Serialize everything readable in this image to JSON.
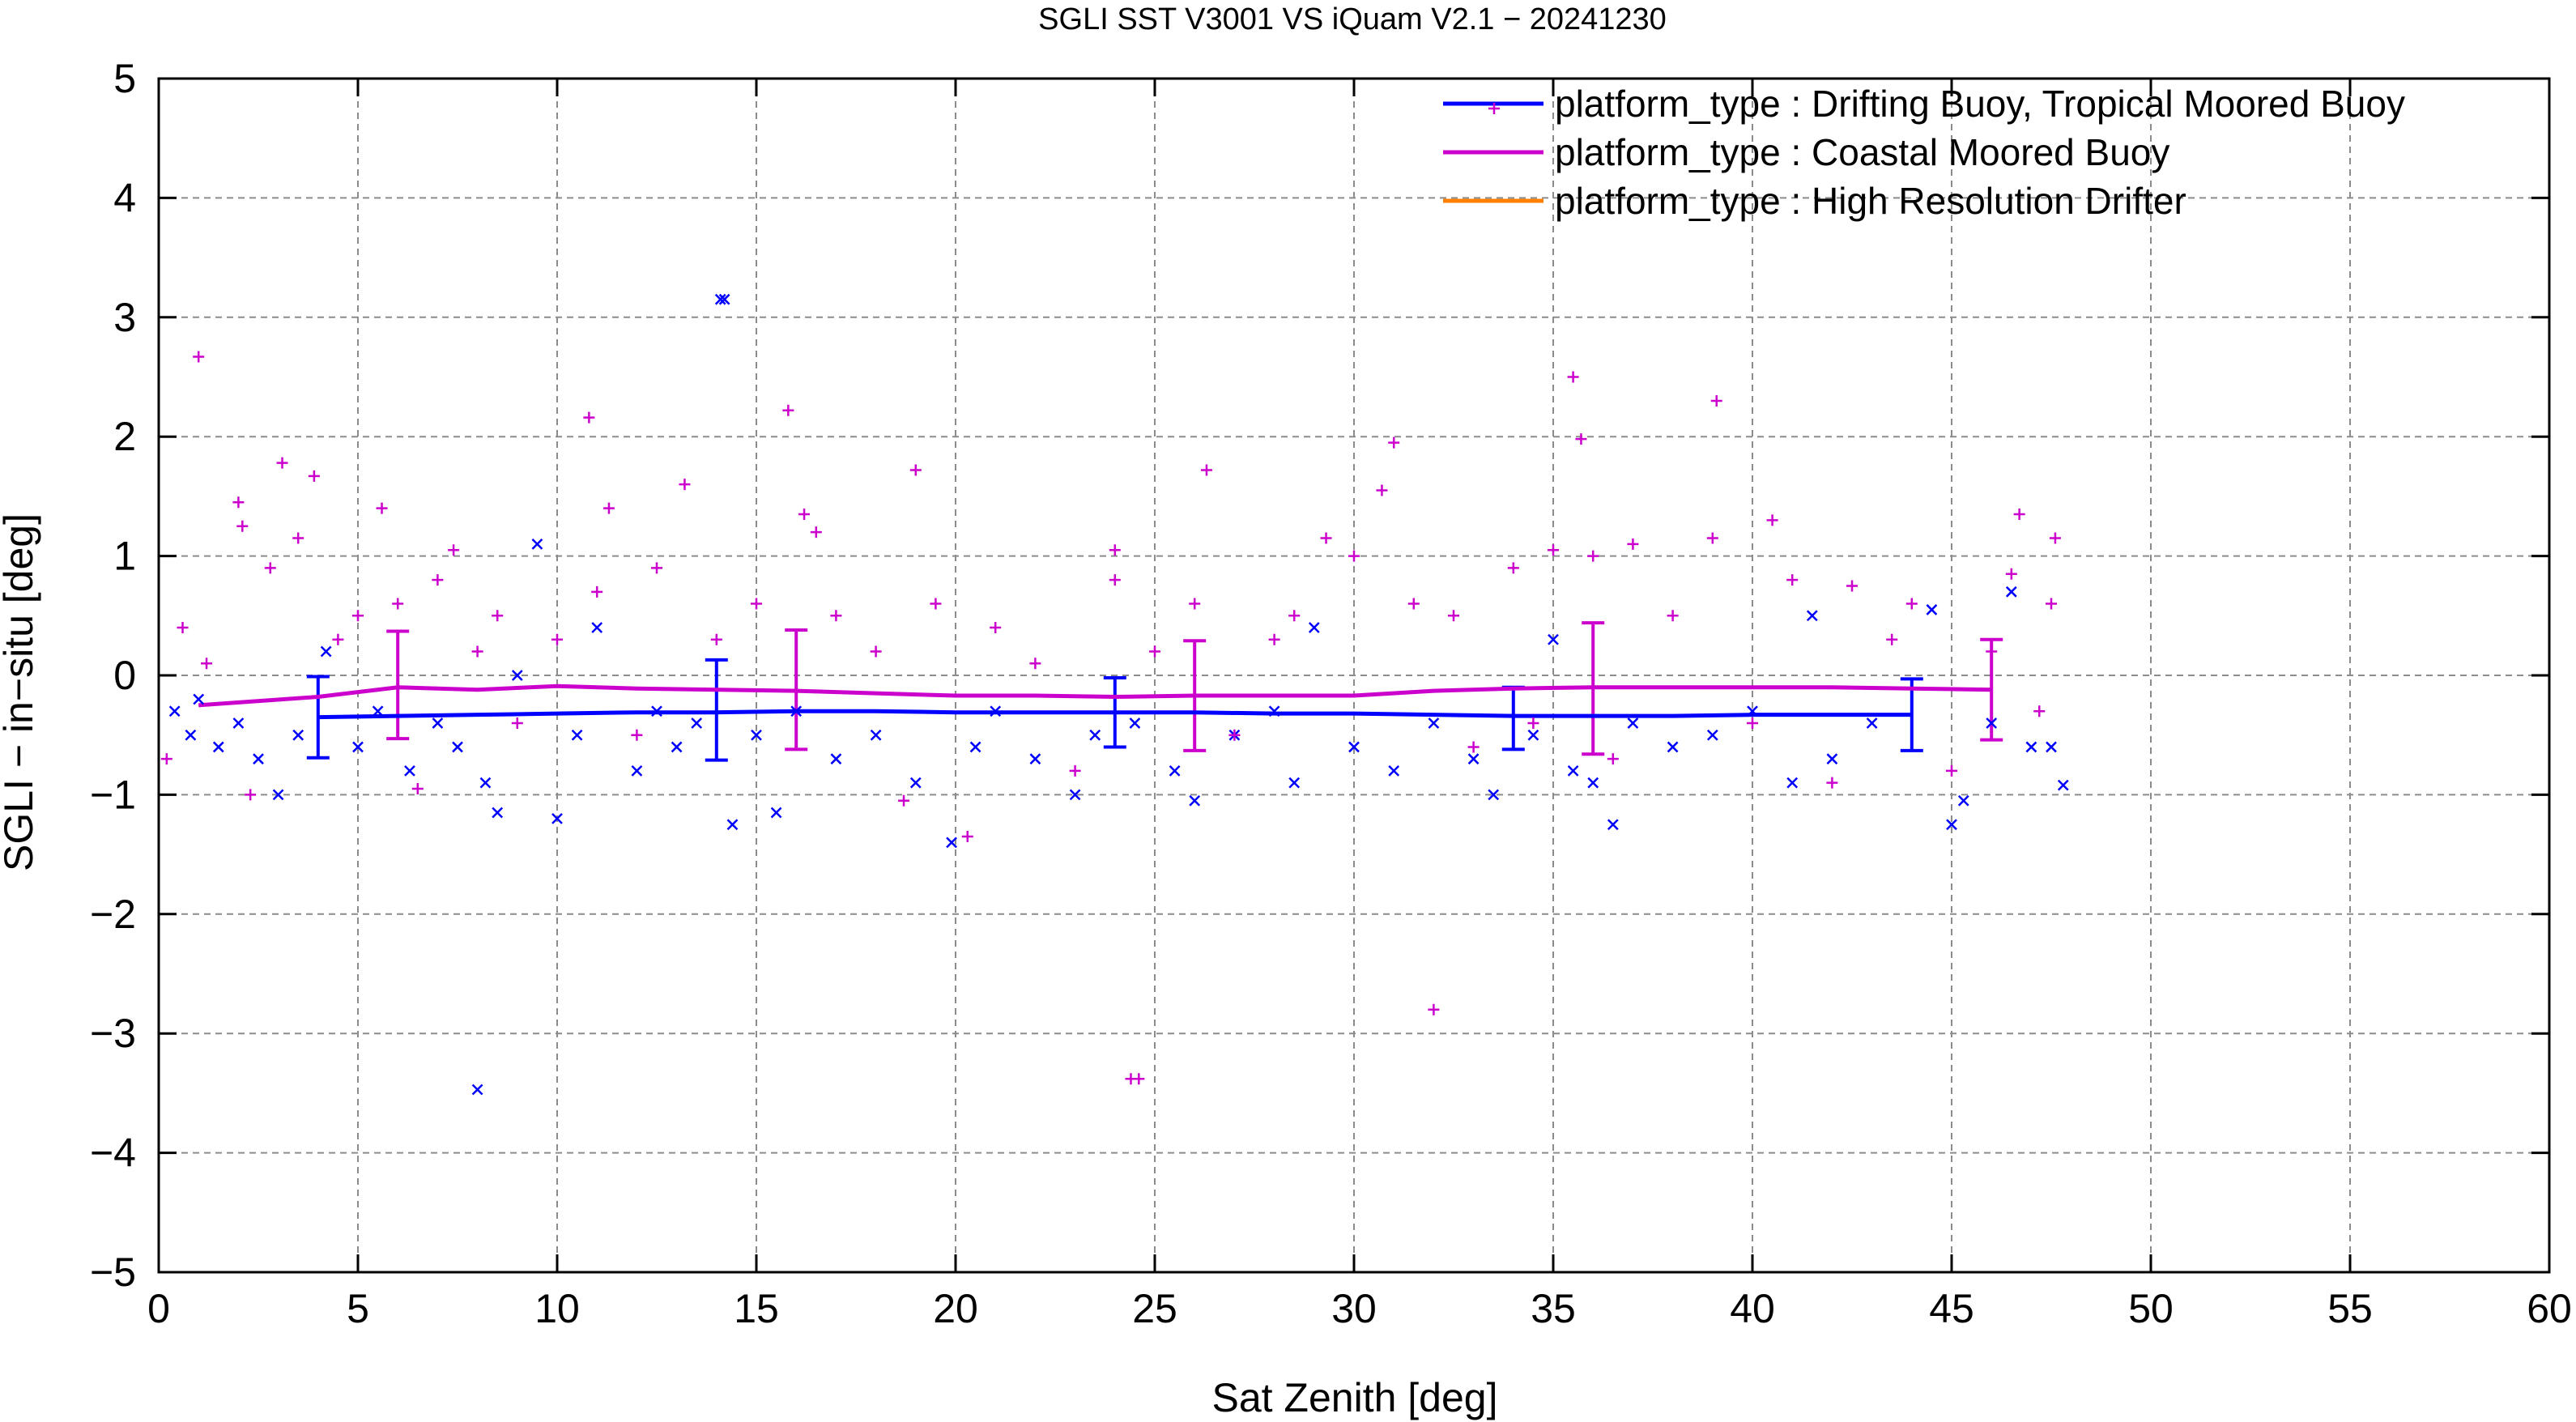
{
  "chart_data": {
    "type": "scatter",
    "title": "SGLI SST V3001 VS iQuam V2.1  − 20241230",
    "xlabel": "Sat Zenith [deg]",
    "ylabel": "SGLI − in−situ [deg]",
    "xlim": [
      0,
      60
    ],
    "ylim": [
      -5,
      5
    ],
    "xticks": [
      0,
      5,
      10,
      15,
      20,
      25,
      30,
      35,
      40,
      45,
      50,
      55,
      60
    ],
    "yticks": [
      -5,
      -4,
      -3,
      -2,
      -1,
      0,
      1,
      2,
      3,
      4,
      5
    ],
    "xtick_labels": [
      "0",
      "5",
      "10",
      "15",
      "20",
      "25",
      "30",
      "35",
      "40",
      "45",
      "50",
      "55",
      "60"
    ],
    "ytick_labels": [
      "−5",
      "−4",
      "−3",
      "−2",
      "−1",
      "0",
      "1",
      "2",
      "3",
      "4",
      "5"
    ],
    "grid": true,
    "legend_position": "top-right",
    "series": [
      {
        "name": "platform_type : Drifting Buoy, Tropical Moored Buoy",
        "color": "#0000ff",
        "marker": "x",
        "mean_curve": {
          "x": [
            4,
            6,
            8,
            10,
            12,
            14,
            16,
            18,
            20,
            22,
            24,
            26,
            28,
            30,
            32,
            34,
            36,
            38,
            40,
            42,
            44
          ],
          "y": [
            -0.35,
            -0.34,
            -0.33,
            -0.32,
            -0.31,
            -0.31,
            -0.3,
            -0.3,
            -0.31,
            -0.31,
            -0.31,
            -0.31,
            -0.32,
            -0.32,
            -0.33,
            -0.34,
            -0.34,
            -0.34,
            -0.33,
            -0.33,
            -0.33
          ]
        },
        "error_bars": [
          {
            "x": 4,
            "mean": -0.35,
            "sd": 0.34
          },
          {
            "x": 14,
            "mean": -0.29,
            "sd": 0.42
          },
          {
            "x": 24,
            "mean": -0.31,
            "sd": 0.29
          },
          {
            "x": 34,
            "mean": -0.36,
            "sd": 0.26
          },
          {
            "x": 44,
            "mean": -0.33,
            "sd": 0.3
          }
        ],
        "points": [
          [
            0.4,
            -0.3
          ],
          [
            0.8,
            -0.5
          ],
          [
            1.0,
            -0.2
          ],
          [
            1.5,
            -0.6
          ],
          [
            2.0,
            -0.4
          ],
          [
            2.5,
            -0.7
          ],
          [
            3.0,
            -1.0
          ],
          [
            3.5,
            -0.5
          ],
          [
            4.2,
            0.2
          ],
          [
            5.0,
            -0.6
          ],
          [
            5.5,
            -0.3
          ],
          [
            6.3,
            -0.8
          ],
          [
            7.0,
            -0.4
          ],
          [
            7.5,
            -0.6
          ],
          [
            8.0,
            -3.47
          ],
          [
            8.2,
            -0.9
          ],
          [
            8.5,
            -1.15
          ],
          [
            9.0,
            0.0
          ],
          [
            9.5,
            1.1
          ],
          [
            10.0,
            -1.2
          ],
          [
            10.5,
            -0.5
          ],
          [
            11.0,
            0.4
          ],
          [
            12.0,
            -0.8
          ],
          [
            12.5,
            -0.3
          ],
          [
            13.0,
            -0.6
          ],
          [
            13.5,
            -0.4
          ],
          [
            14.1,
            3.15
          ],
          [
            14.2,
            3.15
          ],
          [
            14.4,
            -1.25
          ],
          [
            15.0,
            -0.5
          ],
          [
            15.5,
            -1.15
          ],
          [
            16.0,
            -0.3
          ],
          [
            17.0,
            -0.7
          ],
          [
            18.0,
            -0.5
          ],
          [
            19.0,
            -0.9
          ],
          [
            19.9,
            -1.4
          ],
          [
            20.5,
            -0.6
          ],
          [
            21.0,
            -0.3
          ],
          [
            22.0,
            -0.7
          ],
          [
            23.0,
            -1.0
          ],
          [
            23.5,
            -0.5
          ],
          [
            24.5,
            -0.4
          ],
          [
            25.5,
            -0.8
          ],
          [
            26.0,
            -1.05
          ],
          [
            27.0,
            -0.5
          ],
          [
            28.0,
            -0.3
          ],
          [
            28.5,
            -0.9
          ],
          [
            29.0,
            0.4
          ],
          [
            30.0,
            -0.6
          ],
          [
            31.0,
            -0.8
          ],
          [
            32.0,
            -0.4
          ],
          [
            33.0,
            -0.7
          ],
          [
            33.5,
            -1.0
          ],
          [
            34.5,
            -0.5
          ],
          [
            35.0,
            0.3
          ],
          [
            35.5,
            -0.8
          ],
          [
            36.0,
            -0.9
          ],
          [
            36.5,
            -1.25
          ],
          [
            37.0,
            -0.4
          ],
          [
            38.0,
            -0.6
          ],
          [
            39.0,
            -0.5
          ],
          [
            40.0,
            -0.3
          ],
          [
            41.0,
            -0.9
          ],
          [
            41.5,
            0.5
          ],
          [
            42.0,
            -0.7
          ],
          [
            43.0,
            -0.4
          ],
          [
            44.5,
            0.55
          ],
          [
            45.0,
            -1.25
          ],
          [
            45.3,
            -1.05
          ],
          [
            46.0,
            -0.4
          ],
          [
            46.5,
            0.7
          ],
          [
            47.0,
            -0.6
          ],
          [
            47.5,
            -0.6
          ],
          [
            47.8,
            -0.92
          ]
        ]
      },
      {
        "name": "platform_type : Coastal Moored Buoy",
        "color": "#cc00cc",
        "marker": "+",
        "mean_curve": {
          "x": [
            1,
            4,
            6,
            8,
            10,
            12,
            14,
            16,
            18,
            20,
            22,
            24,
            26,
            28,
            30,
            32,
            34,
            36,
            38,
            40,
            42,
            44,
            46
          ],
          "y": [
            -0.25,
            -0.18,
            -0.1,
            -0.12,
            -0.09,
            -0.11,
            -0.12,
            -0.13,
            -0.15,
            -0.17,
            -0.17,
            -0.18,
            -0.17,
            -0.17,
            -0.17,
            -0.13,
            -0.11,
            -0.1,
            -0.1,
            -0.1,
            -0.1,
            -0.11,
            -0.12
          ]
        },
        "error_bars": [
          {
            "x": 6,
            "mean": -0.08,
            "sd": 0.45
          },
          {
            "x": 16,
            "mean": -0.12,
            "sd": 0.5
          },
          {
            "x": 26,
            "mean": -0.17,
            "sd": 0.46
          },
          {
            "x": 36,
            "mean": -0.11,
            "sd": 0.55
          },
          {
            "x": 46,
            "mean": -0.12,
            "sd": 0.42
          }
        ],
        "points": [
          [
            0.2,
            -0.7
          ],
          [
            0.6,
            0.4
          ],
          [
            1.0,
            2.67
          ],
          [
            1.2,
            0.1
          ],
          [
            2.0,
            1.45
          ],
          [
            2.1,
            1.25
          ],
          [
            2.3,
            -1.0
          ],
          [
            2.8,
            0.9
          ],
          [
            3.1,
            1.78
          ],
          [
            3.5,
            1.15
          ],
          [
            3.9,
            1.67
          ],
          [
            4.5,
            0.3
          ],
          [
            5.0,
            0.5
          ],
          [
            5.6,
            1.4
          ],
          [
            6.0,
            0.6
          ],
          [
            6.5,
            -0.95
          ],
          [
            7.0,
            0.8
          ],
          [
            7.4,
            1.05
          ],
          [
            8.0,
            0.2
          ],
          [
            8.5,
            0.5
          ],
          [
            9.0,
            -0.4
          ],
          [
            10.0,
            0.3
          ],
          [
            10.8,
            2.16
          ],
          [
            11.0,
            0.7
          ],
          [
            11.3,
            1.4
          ],
          [
            12.0,
            -0.5
          ],
          [
            12.5,
            0.9
          ],
          [
            13.2,
            1.6
          ],
          [
            14.0,
            0.3
          ],
          [
            15.0,
            0.6
          ],
          [
            15.8,
            2.22
          ],
          [
            16.2,
            1.35
          ],
          [
            16.5,
            1.2
          ],
          [
            17.0,
            0.5
          ],
          [
            18.0,
            0.2
          ],
          [
            18.7,
            -1.05
          ],
          [
            19.0,
            1.72
          ],
          [
            19.5,
            0.6
          ],
          [
            20.3,
            -1.35
          ],
          [
            21.0,
            0.4
          ],
          [
            22.0,
            0.1
          ],
          [
            23.0,
            -0.8
          ],
          [
            24.0,
            1.05
          ],
          [
            24.0,
            0.8
          ],
          [
            24.4,
            -3.38
          ],
          [
            24.6,
            -3.38
          ],
          [
            25.0,
            0.2
          ],
          [
            26.0,
            0.6
          ],
          [
            26.3,
            1.72
          ],
          [
            27.0,
            -0.5
          ],
          [
            28.0,
            0.3
          ],
          [
            28.5,
            0.5
          ],
          [
            29.3,
            1.15
          ],
          [
            30.0,
            1.0
          ],
          [
            30.7,
            1.55
          ],
          [
            31.0,
            1.95
          ],
          [
            31.5,
            0.6
          ],
          [
            32.0,
            -2.8
          ],
          [
            32.5,
            0.5
          ],
          [
            33.0,
            -0.6
          ],
          [
            34.0,
            0.9
          ],
          [
            34.5,
            -0.4
          ],
          [
            35.0,
            1.05
          ],
          [
            35.5,
            2.5
          ],
          [
            35.7,
            1.98
          ],
          [
            36.0,
            1.0
          ],
          [
            36.5,
            -0.7
          ],
          [
            37.0,
            1.1
          ],
          [
            38.0,
            0.5
          ],
          [
            39.0,
            1.15
          ],
          [
            39.1,
            2.3
          ],
          [
            40.0,
            -0.4
          ],
          [
            40.5,
            1.3
          ],
          [
            41.0,
            0.8
          ],
          [
            42.0,
            -0.9
          ],
          [
            42.5,
            0.75
          ],
          [
            43.5,
            0.3
          ],
          [
            44.0,
            0.6
          ],
          [
            45.0,
            -0.8
          ],
          [
            46.0,
            0.2
          ],
          [
            46.5,
            0.85
          ],
          [
            46.7,
            1.35
          ],
          [
            47.5,
            0.6
          ],
          [
            47.6,
            1.15
          ],
          [
            47.2,
            -0.3
          ]
        ]
      },
      {
        "name": "platform_type : High Resolution Drifter",
        "color": "#ff8000",
        "marker": "line",
        "points": []
      }
    ]
  }
}
